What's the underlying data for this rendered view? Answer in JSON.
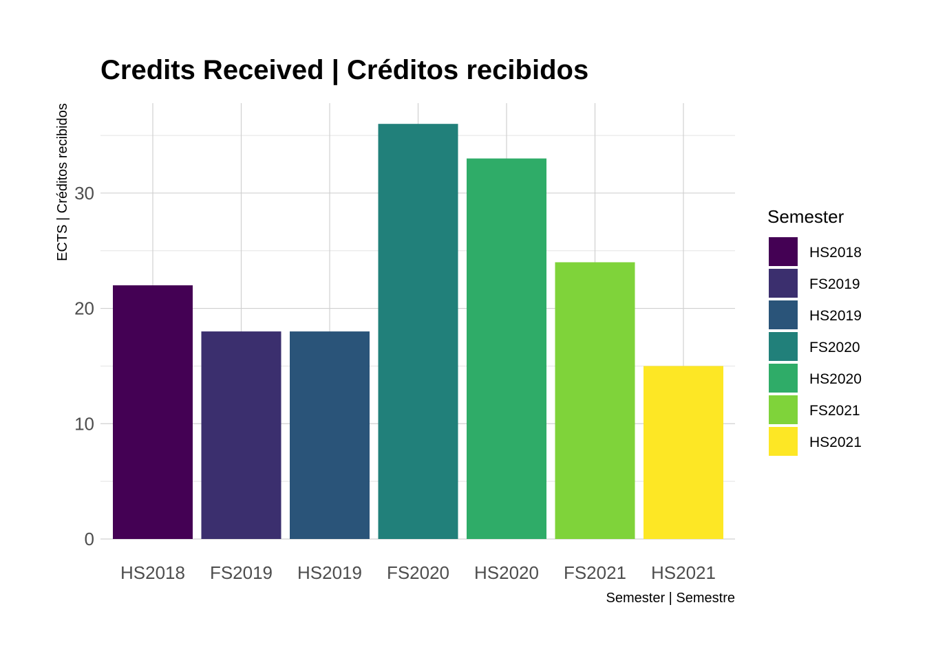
{
  "chart_data": {
    "type": "bar",
    "title": "Credits Received | Créditos recibidos",
    "xlabel": "Semester | Semestre",
    "ylabel": "ECTS | Créditos recibidos",
    "categories": [
      "HS2018",
      "FS2019",
      "HS2019",
      "FS2020",
      "HS2020",
      "FS2021",
      "HS2021"
    ],
    "values": [
      22,
      18,
      18,
      36,
      33,
      24,
      15
    ],
    "colors": [
      "#440154",
      "#3B2F6E",
      "#2A5479",
      "#21807A",
      "#2FAC68",
      "#7FD33A",
      "#FDE725"
    ],
    "ylim": [
      0,
      37.8
    ],
    "yticks": [
      0,
      10,
      20,
      30
    ],
    "grid": true,
    "legend": {
      "title": "Semester",
      "position": "right",
      "entries": [
        "HS2018",
        "FS2019",
        "HS2019",
        "FS2020",
        "HS2020",
        "FS2021",
        "HS2021"
      ]
    }
  }
}
